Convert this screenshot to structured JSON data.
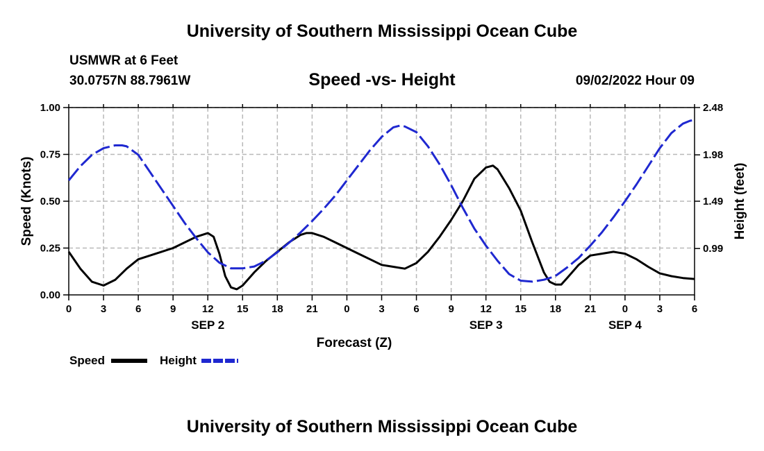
{
  "header": {
    "title": "University of Southern Mississippi Ocean Cube",
    "station": "USMWR at 6 Feet",
    "location": "30.0757N  88.7961W",
    "datetime": "09/02/2022 Hour 09"
  },
  "footer": {
    "title": "University of Southern Mississippi Ocean Cube"
  },
  "chart_data": {
    "type": "line",
    "title": "Speed -vs- Height",
    "xlabel": "Forecast (Z)",
    "ylabel_left": "Speed (Knots)",
    "ylabel_right": "Height (feet)",
    "x_unit": "hours since 2022-09-02 00Z",
    "xlim": [
      0,
      54
    ],
    "ylim_left": [
      0,
      1.0
    ],
    "ylim_right": [
      0.5,
      2.48
    ],
    "left_ticks": [
      "0.00",
      "0.25",
      "0.50",
      "0.75",
      "1.00"
    ],
    "right_ticks": [
      "0.99",
      "1.49",
      "1.98",
      "2.48"
    ],
    "right_tick_values": [
      0.99,
      1.49,
      1.98,
      2.48
    ],
    "x_ticks": [
      {
        "x": 0,
        "label": "0"
      },
      {
        "x": 3,
        "label": "3"
      },
      {
        "x": 6,
        "label": "6"
      },
      {
        "x": 9,
        "label": "9"
      },
      {
        "x": 12,
        "label": "12"
      },
      {
        "x": 15,
        "label": "15"
      },
      {
        "x": 18,
        "label": "18"
      },
      {
        "x": 21,
        "label": "21"
      },
      {
        "x": 24,
        "label": "0"
      },
      {
        "x": 27,
        "label": "3"
      },
      {
        "x": 30,
        "label": "6"
      },
      {
        "x": 33,
        "label": "9"
      },
      {
        "x": 36,
        "label": "12"
      },
      {
        "x": 39,
        "label": "15"
      },
      {
        "x": 42,
        "label": "18"
      },
      {
        "x": 45,
        "label": "21"
      },
      {
        "x": 48,
        "label": "0"
      },
      {
        "x": 51,
        "label": "3"
      },
      {
        "x": 54,
        "label": "6"
      }
    ],
    "day_labels": [
      {
        "x": 12,
        "label": "SEP 2"
      },
      {
        "x": 36,
        "label": "SEP 3"
      },
      {
        "x": 48,
        "label": "SEP 4"
      }
    ],
    "grid": true,
    "legend_position": "bottom-left",
    "series": [
      {
        "name": "Speed",
        "axis": "left",
        "color": "#000000",
        "dash": "solid",
        "x": [
          0,
          1,
          2,
          3,
          4,
          5,
          6,
          7,
          8,
          9,
          10,
          11,
          12,
          12.5,
          13,
          13.5,
          14,
          14.5,
          15,
          16,
          17,
          18,
          19,
          20,
          20.5,
          21,
          22,
          23,
          24,
          25,
          26,
          27,
          28,
          29,
          30,
          31,
          32,
          33,
          34,
          35,
          36,
          36.6,
          37,
          38,
          39,
          40,
          41,
          41.5,
          42,
          42.5,
          43,
          44,
          45,
          46,
          47,
          48,
          49,
          50,
          51,
          52,
          53,
          54
        ],
        "y": [
          0.23,
          0.14,
          0.07,
          0.05,
          0.08,
          0.14,
          0.19,
          0.21,
          0.23,
          0.25,
          0.28,
          0.31,
          0.33,
          0.31,
          0.22,
          0.1,
          0.04,
          0.03,
          0.05,
          0.12,
          0.18,
          0.23,
          0.28,
          0.32,
          0.33,
          0.33,
          0.31,
          0.28,
          0.25,
          0.22,
          0.19,
          0.16,
          0.15,
          0.14,
          0.17,
          0.23,
          0.31,
          0.4,
          0.5,
          0.62,
          0.68,
          0.69,
          0.67,
          0.57,
          0.45,
          0.28,
          0.12,
          0.07,
          0.055,
          0.055,
          0.09,
          0.16,
          0.21,
          0.22,
          0.23,
          0.22,
          0.19,
          0.15,
          0.115,
          0.1,
          0.09,
          0.085
        ]
      },
      {
        "name": "Height",
        "axis": "right",
        "color": "#1f28d0",
        "dash": "dashed",
        "x": [
          0,
          1,
          2,
          3,
          4,
          4.6,
          5,
          6,
          7,
          8,
          9,
          10,
          11,
          12,
          13,
          14,
          15,
          16,
          17,
          18,
          19,
          20,
          21,
          22,
          23,
          24,
          25,
          26,
          27,
          28,
          28.6,
          29,
          30,
          31,
          32,
          33,
          34,
          35,
          36,
          37,
          38,
          39,
          40,
          41,
          41.8,
          42,
          43,
          44,
          45,
          46,
          47,
          48,
          49,
          50,
          51,
          52,
          53,
          53.6,
          54
        ],
        "y": [
          1.71,
          1.86,
          1.98,
          2.05,
          2.08,
          2.08,
          2.07,
          1.98,
          1.8,
          1.62,
          1.44,
          1.26,
          1.1,
          0.95,
          0.84,
          0.78,
          0.78,
          0.8,
          0.86,
          0.95,
          1.05,
          1.16,
          1.28,
          1.41,
          1.55,
          1.71,
          1.87,
          2.03,
          2.17,
          2.27,
          2.29,
          2.28,
          2.22,
          2.07,
          1.88,
          1.66,
          1.42,
          1.2,
          1.02,
          0.86,
          0.72,
          0.65,
          0.64,
          0.66,
          0.69,
          0.7,
          0.79,
          0.89,
          1.02,
          1.16,
          1.32,
          1.49,
          1.67,
          1.86,
          2.05,
          2.21,
          2.31,
          2.34,
          2.35
        ]
      }
    ]
  }
}
